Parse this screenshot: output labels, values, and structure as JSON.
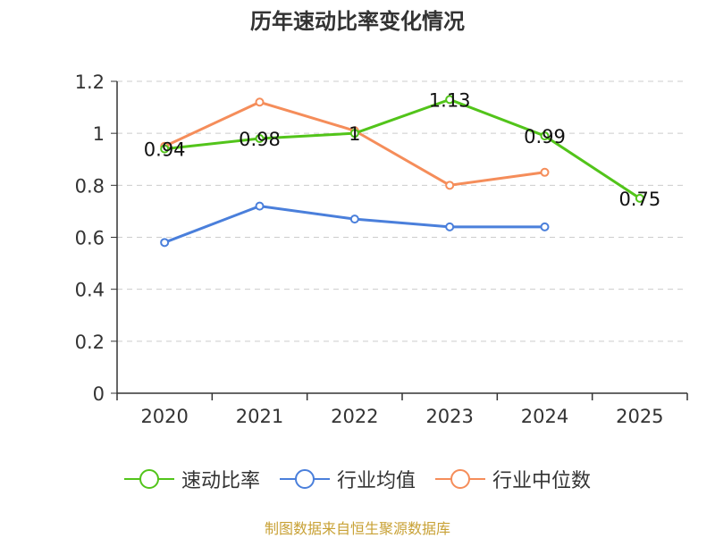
{
  "chart_data": {
    "type": "line",
    "title": "历年速动比率变化情况",
    "categories": [
      "2020",
      "2021",
      "2022",
      "2023",
      "2024",
      "2025"
    ],
    "ylim": [
      0,
      1.2
    ],
    "yticks": [
      "0",
      "0.2",
      "0.4",
      "0.6",
      "0.8",
      "1",
      "1.2"
    ],
    "ytick_values": [
      0,
      0.2,
      0.4,
      0.6,
      0.8,
      1.0,
      1.2
    ],
    "grid": true,
    "legend_position": "bottom",
    "series": [
      {
        "name": "速动比率",
        "color": "#52c41a",
        "values": [
          0.94,
          0.98,
          1.0,
          1.13,
          0.99,
          0.75
        ],
        "labels": [
          "0.94",
          "0.98",
          "1",
          "1.13",
          "0.99",
          "0.75"
        ]
      },
      {
        "name": "行业均值",
        "color": "#4a7fdb",
        "values": [
          0.58,
          0.72,
          0.67,
          0.64,
          0.64,
          null
        ]
      },
      {
        "name": "行业中位数",
        "color": "#f58d5a",
        "values": [
          0.95,
          1.12,
          1.01,
          0.8,
          0.85,
          null
        ]
      }
    ]
  },
  "footer": {
    "source": "制图数据来自恒生聚源数据库"
  }
}
